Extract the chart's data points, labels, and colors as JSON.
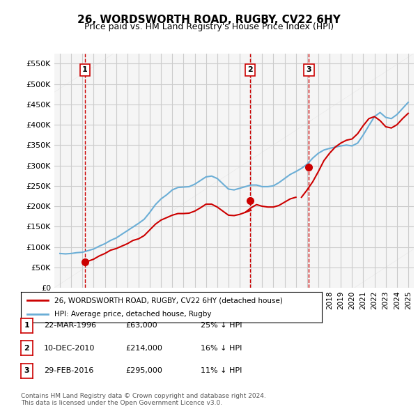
{
  "title": "26, WORDSWORTH ROAD, RUGBY, CV22 6HY",
  "subtitle": "Price paid vs. HM Land Registry's House Price Index (HPI)",
  "hpi_color": "#6baed6",
  "price_color": "#cc0000",
  "dashed_color": "#cc0000",
  "background_color": "#f5f5f5",
  "grid_color": "#cccccc",
  "ylim": [
    0,
    575000
  ],
  "yticks": [
    0,
    50000,
    100000,
    150000,
    200000,
    250000,
    300000,
    350000,
    400000,
    450000,
    500000,
    550000
  ],
  "xlim_start": 1993.5,
  "xlim_end": 2025.5,
  "transactions": [
    {
      "label": "1",
      "date": "22-MAR-1996",
      "year": 1996.22,
      "price": 63000,
      "hpi_pct": "25% ↓ HPI"
    },
    {
      "label": "2",
      "date": "10-DEC-2010",
      "year": 2010.94,
      "price": 214000,
      "hpi_pct": "16% ↓ HPI"
    },
    {
      "label": "3",
      "date": "29-FEB-2016",
      "year": 2016.16,
      "price": 295000,
      "hpi_pct": "11% ↓ HPI"
    }
  ],
  "legend_label_price": "26, WORDSWORTH ROAD, RUGBY, CV22 6HY (detached house)",
  "legend_label_hpi": "HPI: Average price, detached house, Rugby",
  "footnote": "Contains HM Land Registry data © Crown copyright and database right 2024.\nThis data is licensed under the Open Government Licence v3.0.",
  "hpi_data_x": [
    1994,
    1994.5,
    1995,
    1995.5,
    1996,
    1996.5,
    1997,
    1997.5,
    1998,
    1998.5,
    1999,
    1999.5,
    2000,
    2000.5,
    2001,
    2001.5,
    2002,
    2002.5,
    2003,
    2003.5,
    2004,
    2004.5,
    2005,
    2005.5,
    2006,
    2006.5,
    2007,
    2007.5,
    2008,
    2008.5,
    2009,
    2009.5,
    2010,
    2010.5,
    2011,
    2011.5,
    2012,
    2012.5,
    2013,
    2013.5,
    2014,
    2014.5,
    2015,
    2015.5,
    2016,
    2016.5,
    2017,
    2017.5,
    2018,
    2018.5,
    2019,
    2019.5,
    2020,
    2020.5,
    2021,
    2021.5,
    2022,
    2022.5,
    2023,
    2023.5,
    2024,
    2024.5,
    2025
  ],
  "hpi_data_y": [
    84000,
    83000,
    84000,
    86000,
    87000,
    91000,
    95000,
    102000,
    108000,
    116000,
    122000,
    131000,
    140000,
    149000,
    158000,
    168000,
    185000,
    204000,
    218000,
    228000,
    240000,
    246000,
    247000,
    248000,
    254000,
    263000,
    272000,
    274000,
    268000,
    255000,
    242000,
    240000,
    244000,
    248000,
    252000,
    252000,
    248000,
    248000,
    250000,
    258000,
    268000,
    278000,
    285000,
    293000,
    303000,
    318000,
    330000,
    338000,
    342000,
    345000,
    348000,
    350000,
    348000,
    355000,
    375000,
    398000,
    420000,
    430000,
    418000,
    415000,
    425000,
    440000,
    455000
  ],
  "price_data_x": [
    1994,
    1994.5,
    1995,
    1995.5,
    1996,
    1996.5,
    1997,
    1997.5,
    1998,
    1998.5,
    1999,
    1999.5,
    2000,
    2000.5,
    2001,
    2001.5,
    2002,
    2002.5,
    2003,
    2003.5,
    2004,
    2004.5,
    2005,
    2005.5,
    2006,
    2006.5,
    2007,
    2007.5,
    2008,
    2008.5,
    2009,
    2009.5,
    2010,
    2010.5,
    2011,
    2011.5,
    2012,
    2012.5,
    2013,
    2013.5,
    2014,
    2014.5,
    2015,
    2015.5,
    2016,
    2016.5,
    2017,
    2017.5,
    2018,
    2018.5,
    2019,
    2019.5,
    2020,
    2020.5,
    2021,
    2021.5,
    2022,
    2022.5,
    2023,
    2023.5,
    2024,
    2024.5,
    2025
  ],
  "price_data_y": [
    null,
    null,
    null,
    null,
    63000,
    65000,
    70000,
    78000,
    84000,
    92000,
    96000,
    102000,
    108000,
    116000,
    120000,
    128000,
    142000,
    156000,
    166000,
    172000,
    178000,
    182000,
    182000,
    183000,
    188000,
    196000,
    205000,
    205000,
    198000,
    188000,
    178000,
    177000,
    180000,
    185000,
    190000,
    null,
    null,
    null,
    null,
    null,
    null,
    null,
    null,
    null,
    null,
    null,
    null,
    null,
    null,
    null,
    null,
    null,
    null,
    null,
    null,
    null,
    null,
    null,
    null,
    null,
    null,
    null,
    null,
    null
  ],
  "price_data_y2": [
    null,
    null,
    null,
    null,
    null,
    null,
    null,
    null,
    null,
    null,
    null,
    null,
    null,
    null,
    null,
    null,
    null,
    null,
    null,
    null,
    null,
    null,
    null,
    null,
    null,
    null,
    null,
    null,
    null,
    null,
    null,
    null,
    null,
    185000,
    196000,
    204000,
    200000,
    198000,
    198000,
    202000,
    210000,
    218000,
    222000,
    null,
    null,
    null,
    null,
    null,
    null,
    null,
    null,
    null,
    null,
    null,
    null,
    null,
    null,
    null,
    null,
    null,
    null,
    null,
    null,
    null
  ],
  "price_data_y3": [
    null,
    null,
    null,
    null,
    null,
    null,
    null,
    null,
    null,
    null,
    null,
    null,
    null,
    null,
    null,
    null,
    null,
    null,
    null,
    null,
    null,
    null,
    null,
    null,
    null,
    null,
    null,
    null,
    null,
    null,
    null,
    null,
    null,
    null,
    null,
    null,
    null,
    null,
    null,
    null,
    null,
    null,
    null,
    222000,
    240000,
    260000,
    285000,
    312000,
    330000,
    345000,
    355000,
    362000,
    365000,
    378000,
    398000,
    415000,
    420000,
    410000,
    395000,
    392000,
    400000,
    415000,
    428000
  ]
}
